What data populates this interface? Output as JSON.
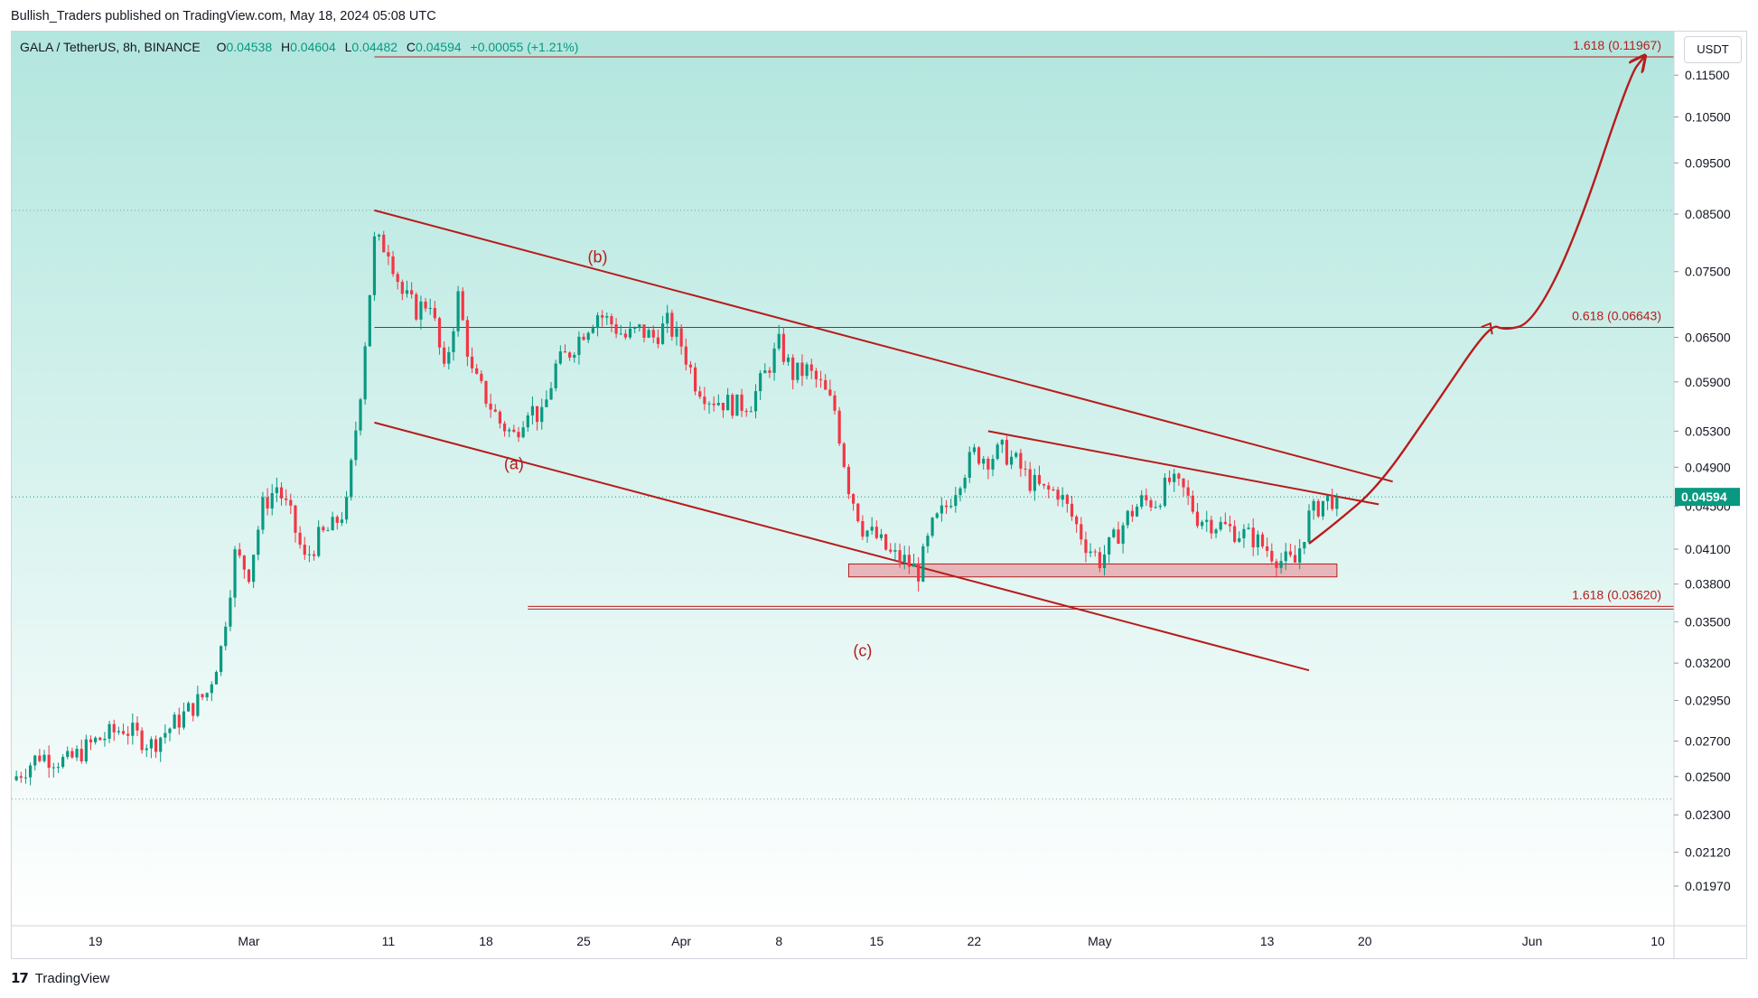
{
  "header": {
    "published_by": "Bullish_Traders published on TradingView.com, May 18, 2024 05:08 UTC"
  },
  "legend": {
    "symbol": "GALA / TetherUS, 8h, BINANCE",
    "o_label": "O",
    "o_value": "0.04538",
    "h_label": "H",
    "h_value": "0.04604",
    "l_label": "L",
    "l_value": "0.04482",
    "c_label": "C",
    "c_value": "0.04594",
    "change": "+0.00055 (+1.21%)"
  },
  "unit_button": "USDT",
  "footer": {
    "brand": "TradingView",
    "logo_glyph": "17"
  },
  "colors": {
    "up": "#089981",
    "down": "#f23645",
    "annotation": "#b71c1c",
    "bg_top": "#b2e6de",
    "bg_bottom": "#ffffff",
    "last_price_tag": "#089981"
  },
  "chart_data": {
    "type": "candlestick",
    "y_scale": "log",
    "ylim": [
      0.0185,
      0.123
    ],
    "y_ticks": [
      {
        "v": 0.115,
        "label": "0.11500"
      },
      {
        "v": 0.105,
        "label": "0.10500"
      },
      {
        "v": 0.095,
        "label": "0.09500"
      },
      {
        "v": 0.085,
        "label": "0.08500"
      },
      {
        "v": 0.075,
        "label": "0.07500"
      },
      {
        "v": 0.065,
        "label": "0.06500"
      },
      {
        "v": 0.059,
        "label": "0.05900"
      },
      {
        "v": 0.053,
        "label": "0.05300"
      },
      {
        "v": 0.049,
        "label": "0.04900"
      },
      {
        "v": 0.045,
        "label": "0.04500"
      },
      {
        "v": 0.041,
        "label": "0.04100"
      },
      {
        "v": 0.038,
        "label": "0.03800"
      },
      {
        "v": 0.035,
        "label": "0.03500"
      },
      {
        "v": 0.032,
        "label": "0.03200"
      },
      {
        "v": 0.0295,
        "label": "0.02950"
      },
      {
        "v": 0.027,
        "label": "0.02700"
      },
      {
        "v": 0.025,
        "label": "0.02500"
      },
      {
        "v": 0.023,
        "label": "0.02300"
      },
      {
        "v": 0.0212,
        "label": "0.02120"
      },
      {
        "v": 0.0197,
        "label": "0.01970"
      }
    ],
    "x_domain": [
      "2024-02-13",
      "2024-06-10"
    ],
    "x_ticks": [
      {
        "date": "2024-02-19",
        "label": "19"
      },
      {
        "date": "2024-03-01",
        "label": "Mar"
      },
      {
        "date": "2024-03-11",
        "label": "11"
      },
      {
        "date": "2024-03-18",
        "label": "18"
      },
      {
        "date": "2024-03-25",
        "label": "25"
      },
      {
        "date": "2024-04-01",
        "label": "Apr"
      },
      {
        "date": "2024-04-08",
        "label": "8"
      },
      {
        "date": "2024-04-15",
        "label": "15"
      },
      {
        "date": "2024-04-22",
        "label": "22"
      },
      {
        "date": "2024-05-01",
        "label": "May"
      },
      {
        "date": "2024-05-13",
        "label": "13"
      },
      {
        "date": "2024-05-20",
        "label": "20"
      },
      {
        "date": "2024-06-01",
        "label": "Jun"
      },
      {
        "date": "2024-06-10",
        "label": "10"
      }
    ],
    "last_price": {
      "value": 0.04594,
      "label": "0.04594"
    },
    "close_path": [
      [
        "2024-02-13",
        0.0248
      ],
      [
        "2024-02-15",
        0.0262
      ],
      [
        "2024-02-17",
        0.0258
      ],
      [
        "2024-02-19",
        0.027
      ],
      [
        "2024-02-21",
        0.0278
      ],
      [
        "2024-02-23",
        0.0268
      ],
      [
        "2024-02-25",
        0.0283
      ],
      [
        "2024-02-27",
        0.03
      ],
      [
        "2024-02-28",
        0.033
      ],
      [
        "2024-02-29",
        0.0405
      ],
      [
        "2024-03-01",
        0.039
      ],
      [
        "2024-03-02",
        0.045
      ],
      [
        "2024-03-03",
        0.047
      ],
      [
        "2024-03-04",
        0.044
      ],
      [
        "2024-03-05",
        0.04
      ],
      [
        "2024-03-06",
        0.042
      ],
      [
        "2024-03-07",
        0.043
      ],
      [
        "2024-03-08",
        0.045
      ],
      [
        "2024-03-09",
        0.058
      ],
      [
        "2024-03-10",
        0.08
      ],
      [
        "2024-03-11",
        0.079
      ],
      [
        "2024-03-12",
        0.0715
      ],
      [
        "2024-03-13",
        0.069
      ],
      [
        "2024-03-14",
        0.0705
      ],
      [
        "2024-03-15",
        0.06
      ],
      [
        "2024-03-16",
        0.071
      ],
      [
        "2024-03-17",
        0.06
      ],
      [
        "2024-03-18",
        0.057
      ],
      [
        "2024-03-19",
        0.054
      ],
      [
        "2024-03-20",
        0.0525
      ],
      [
        "2024-03-21",
        0.056
      ],
      [
        "2024-03-22",
        0.0545
      ],
      [
        "2024-03-23",
        0.061
      ],
      [
        "2024-03-24",
        0.063
      ],
      [
        "2024-03-25",
        0.066
      ],
      [
        "2024-03-26",
        0.0685
      ],
      [
        "2024-03-27",
        0.067
      ],
      [
        "2024-03-28",
        0.065
      ],
      [
        "2024-03-29",
        0.066
      ],
      [
        "2024-03-30",
        0.065
      ],
      [
        "2024-03-31",
        0.067
      ],
      [
        "2024-04-01",
        0.064
      ],
      [
        "2024-04-02",
        0.059
      ],
      [
        "2024-04-03",
        0.057
      ],
      [
        "2024-04-04",
        0.0565
      ],
      [
        "2024-04-05",
        0.056
      ],
      [
        "2024-04-06",
        0.0565
      ],
      [
        "2024-04-07",
        0.06
      ],
      [
        "2024-04-08",
        0.064
      ],
      [
        "2024-04-09",
        0.06
      ],
      [
        "2024-04-10",
        0.0605
      ],
      [
        "2024-04-11",
        0.0585
      ],
      [
        "2024-04-12",
        0.0555
      ],
      [
        "2024-04-13",
        0.047
      ],
      [
        "2024-04-14",
        0.043
      ],
      [
        "2024-04-15",
        0.042
      ],
      [
        "2024-04-16",
        0.0405
      ],
      [
        "2024-04-17",
        0.04
      ],
      [
        "2024-04-18",
        0.039
      ],
      [
        "2024-04-19",
        0.043
      ],
      [
        "2024-04-20",
        0.045
      ],
      [
        "2024-04-21",
        0.048
      ],
      [
        "2024-04-22",
        0.0505
      ],
      [
        "2024-04-23",
        0.05
      ],
      [
        "2024-04-24",
        0.0508
      ],
      [
        "2024-04-25",
        0.0495
      ],
      [
        "2024-04-26",
        0.0475
      ],
      [
        "2024-04-27",
        0.0465
      ],
      [
        "2024-04-28",
        0.0465
      ],
      [
        "2024-04-29",
        0.044
      ],
      [
        "2024-04-30",
        0.0415
      ],
      [
        "2024-05-01",
        0.04
      ],
      [
        "2024-05-02",
        0.0418
      ],
      [
        "2024-05-03",
        0.044
      ],
      [
        "2024-05-04",
        0.0455
      ],
      [
        "2024-05-05",
        0.0455
      ],
      [
        "2024-05-06",
        0.0475
      ],
      [
        "2024-05-07",
        0.0465
      ],
      [
        "2024-05-08",
        0.044
      ],
      [
        "2024-05-09",
        0.0435
      ],
      [
        "2024-05-10",
        0.043
      ],
      [
        "2024-05-11",
        0.0425
      ],
      [
        "2024-05-12",
        0.042
      ],
      [
        "2024-05-13",
        0.041
      ],
      [
        "2024-05-14",
        0.04
      ],
      [
        "2024-05-15",
        0.0398
      ],
      [
        "2024-05-16",
        0.044
      ],
      [
        "2024-05-17",
        0.0455
      ],
      [
        "2024-05-18",
        0.04594
      ]
    ],
    "fib_levels": [
      {
        "label": "1.618 (0.11967)",
        "value": 0.11967,
        "from": "2024-03-10"
      },
      {
        "label": "0.618 (0.06643)",
        "value": 0.06643,
        "from": "2024-03-10"
      },
      {
        "label": "1.618 (0.03620)",
        "value": 0.0362,
        "from": "2024-03-21"
      }
    ],
    "support_zone": {
      "from": "2024-04-13",
      "to": "2024-05-18",
      "low": 0.0386,
      "high": 0.0397
    },
    "channel_upper": [
      [
        "2024-03-10",
        0.0857
      ],
      [
        "2024-05-22",
        0.0475
      ]
    ],
    "channel_lower": [
      [
        "2024-03-10",
        0.054
      ],
      [
        "2024-05-16",
        0.0315
      ]
    ],
    "wedge_upper": [
      [
        "2024-04-23",
        0.053
      ],
      [
        "2024-05-21",
        0.0452
      ]
    ],
    "projection": [
      [
        "2024-05-16",
        0.0415
      ],
      [
        "2024-05-18",
        0.0435
      ],
      [
        "2024-05-21",
        0.047
      ],
      [
        "2024-05-25",
        0.056
      ],
      [
        "2024-05-29",
        0.067
      ],
      [
        "2024-05-30",
        0.066
      ],
      [
        "2024-06-01",
        0.067
      ],
      [
        "2024-06-04",
        0.08
      ],
      [
        "2024-06-08",
        0.115
      ],
      [
        "2024-06-09",
        0.1196
      ]
    ],
    "wave_labels": [
      {
        "text": "(a)",
        "date": "2024-03-20",
        "value": 0.0488
      },
      {
        "text": "(b)",
        "date": "2024-03-26",
        "value": 0.0765
      },
      {
        "text": "(c)",
        "date": "2024-04-14",
        "value": 0.0325
      }
    ]
  }
}
